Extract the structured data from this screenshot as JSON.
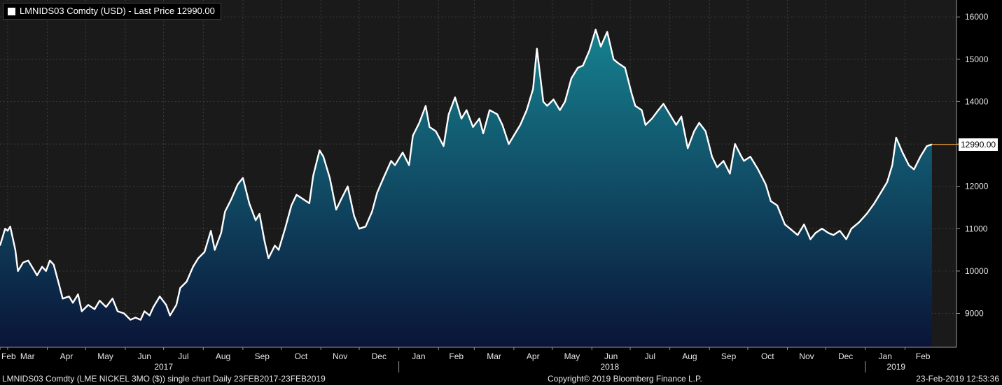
{
  "legend": {
    "label": "LMNIDS03 Comdty (USD) - Last Price 12990.00"
  },
  "footer": {
    "left": "LMNIDS03 Comdty (LME NICKEL    3MO ($)) single chart  Daily 23FEB2017-23FEB2019",
    "center": "Copyright© 2019 Bloomberg Finance L.P.",
    "right": "23-Feb-2019 12:53:36"
  },
  "last_price_label": "12990.00",
  "colors": {
    "background": "#000000",
    "plot_background": "#1a1a1a",
    "line": "#ffffff",
    "area_top": "#16818f",
    "area_bottom": "#0a1438",
    "last_price_marker": "#f0a030"
  },
  "chart_data": {
    "type": "area",
    "title": "",
    "xlabel": "",
    "ylabel": "",
    "x_range": [
      "2017-02-23",
      "2019-02-23"
    ],
    "ylim": [
      8200,
      16400
    ],
    "y_ticks": [
      9000,
      10000,
      11000,
      12000,
      13000,
      14000,
      15000,
      16000
    ],
    "y_tick_labels": [
      "9000",
      "10000",
      "11000",
      "12000",
      "13000",
      "14000",
      "15000",
      "16000"
    ],
    "y_axis_side": "right",
    "grid": true,
    "month_ticks": [
      {
        "label": "Feb",
        "date": "2017-02-01"
      },
      {
        "label": "Mar",
        "date": "2017-03-01"
      },
      {
        "label": "Apr",
        "date": "2017-04-01"
      },
      {
        "label": "May",
        "date": "2017-05-01"
      },
      {
        "label": "Jun",
        "date": "2017-06-01"
      },
      {
        "label": "Jul",
        "date": "2017-07-01"
      },
      {
        "label": "Aug",
        "date": "2017-08-01"
      },
      {
        "label": "Sep",
        "date": "2017-09-01"
      },
      {
        "label": "Oct",
        "date": "2017-10-01"
      },
      {
        "label": "Nov",
        "date": "2017-11-01"
      },
      {
        "label": "Dec",
        "date": "2017-12-01"
      },
      {
        "label": "Jan",
        "date": "2018-01-01"
      },
      {
        "label": "Feb",
        "date": "2018-02-01"
      },
      {
        "label": "Mar",
        "date": "2018-03-01"
      },
      {
        "label": "Apr",
        "date": "2018-04-01"
      },
      {
        "label": "May",
        "date": "2018-05-01"
      },
      {
        "label": "Jun",
        "date": "2018-06-01"
      },
      {
        "label": "Jul",
        "date": "2018-07-01"
      },
      {
        "label": "Aug",
        "date": "2018-08-01"
      },
      {
        "label": "Sep",
        "date": "2018-09-01"
      },
      {
        "label": "Oct",
        "date": "2018-10-01"
      },
      {
        "label": "Nov",
        "date": "2018-11-01"
      },
      {
        "label": "Dec",
        "date": "2018-12-01"
      },
      {
        "label": "Jan",
        "date": "2019-01-01"
      },
      {
        "label": "Feb",
        "date": "2019-02-01"
      }
    ],
    "year_labels": [
      {
        "label": "2017",
        "date": "2017-07-01"
      },
      {
        "label": "2018",
        "date": "2018-06-15"
      },
      {
        "label": "2019",
        "date": "2019-01-25"
      }
    ],
    "year_dividers": [
      "2018-01-01",
      "2019-01-01"
    ],
    "series": [
      {
        "name": "LMNIDS03 Comdty (USD) - Last Price",
        "last_value": 12990,
        "points": [
          [
            "2017-02-23",
            10600
          ],
          [
            "2017-02-27",
            11000
          ],
          [
            "2017-03-01",
            10950
          ],
          [
            "2017-03-03",
            11050
          ],
          [
            "2017-03-07",
            10500
          ],
          [
            "2017-03-09",
            10000
          ],
          [
            "2017-03-13",
            10200
          ],
          [
            "2017-03-17",
            10250
          ],
          [
            "2017-03-21",
            10050
          ],
          [
            "2017-03-24",
            9900
          ],
          [
            "2017-03-28",
            10100
          ],
          [
            "2017-03-31",
            10000
          ],
          [
            "2017-04-03",
            10250
          ],
          [
            "2017-04-06",
            10150
          ],
          [
            "2017-04-10",
            9700
          ],
          [
            "2017-04-13",
            9350
          ],
          [
            "2017-04-18",
            9400
          ],
          [
            "2017-04-21",
            9250
          ],
          [
            "2017-04-25",
            9450
          ],
          [
            "2017-04-28",
            9050
          ],
          [
            "2017-05-03",
            9200
          ],
          [
            "2017-05-08",
            9100
          ],
          [
            "2017-05-12",
            9300
          ],
          [
            "2017-05-17",
            9150
          ],
          [
            "2017-05-22",
            9350
          ],
          [
            "2017-05-26",
            9050
          ],
          [
            "2017-05-31",
            9000
          ],
          [
            "2017-06-05",
            8850
          ],
          [
            "2017-06-09",
            8900
          ],
          [
            "2017-06-13",
            8850
          ],
          [
            "2017-06-16",
            9050
          ],
          [
            "2017-06-20",
            8950
          ],
          [
            "2017-06-23",
            9150
          ],
          [
            "2017-06-28",
            9400
          ],
          [
            "2017-07-03",
            9200
          ],
          [
            "2017-07-06",
            8950
          ],
          [
            "2017-07-11",
            9200
          ],
          [
            "2017-07-14",
            9600
          ],
          [
            "2017-07-19",
            9750
          ],
          [
            "2017-07-24",
            10100
          ],
          [
            "2017-07-28",
            10300
          ],
          [
            "2017-08-02",
            10450
          ],
          [
            "2017-08-07",
            10950
          ],
          [
            "2017-08-10",
            10500
          ],
          [
            "2017-08-15",
            10900
          ],
          [
            "2017-08-18",
            11400
          ],
          [
            "2017-08-23",
            11700
          ],
          [
            "2017-08-28",
            12050
          ],
          [
            "2017-09-01",
            12200
          ],
          [
            "2017-09-06",
            11600
          ],
          [
            "2017-09-11",
            11200
          ],
          [
            "2017-09-14",
            11350
          ],
          [
            "2017-09-18",
            10700
          ],
          [
            "2017-09-21",
            10300
          ],
          [
            "2017-09-26",
            10600
          ],
          [
            "2017-09-29",
            10500
          ],
          [
            "2017-10-04",
            11000
          ],
          [
            "2017-10-09",
            11550
          ],
          [
            "2017-10-13",
            11800
          ],
          [
            "2017-10-18",
            11700
          ],
          [
            "2017-10-23",
            11600
          ],
          [
            "2017-10-26",
            12250
          ],
          [
            "2017-10-31",
            12850
          ],
          [
            "2017-11-03",
            12700
          ],
          [
            "2017-11-08",
            12200
          ],
          [
            "2017-11-13",
            11450
          ],
          [
            "2017-11-17",
            11700
          ],
          [
            "2017-11-22",
            12000
          ],
          [
            "2017-11-27",
            11300
          ],
          [
            "2017-12-01",
            11000
          ],
          [
            "2017-12-06",
            11050
          ],
          [
            "2017-12-11",
            11400
          ],
          [
            "2017-12-15",
            11850
          ],
          [
            "2017-12-20",
            12200
          ],
          [
            "2017-12-26",
            12600
          ],
          [
            "2017-12-29",
            12500
          ],
          [
            "2018-01-04",
            12800
          ],
          [
            "2018-01-09",
            12500
          ],
          [
            "2018-01-12",
            13200
          ],
          [
            "2018-01-17",
            13500
          ],
          [
            "2018-01-22",
            13900
          ],
          [
            "2018-01-25",
            13400
          ],
          [
            "2018-01-30",
            13300
          ],
          [
            "2018-02-05",
            12950
          ],
          [
            "2018-02-09",
            13700
          ],
          [
            "2018-02-14",
            14100
          ],
          [
            "2018-02-19",
            13600
          ],
          [
            "2018-02-23",
            13800
          ],
          [
            "2018-02-28",
            13400
          ],
          [
            "2018-03-05",
            13600
          ],
          [
            "2018-03-08",
            13250
          ],
          [
            "2018-03-13",
            13800
          ],
          [
            "2018-03-19",
            13700
          ],
          [
            "2018-03-23",
            13450
          ],
          [
            "2018-03-28",
            13000
          ],
          [
            "2018-04-03",
            13300
          ],
          [
            "2018-04-06",
            13450
          ],
          [
            "2018-04-11",
            13800
          ],
          [
            "2018-04-16",
            14300
          ],
          [
            "2018-04-19",
            15250
          ],
          [
            "2018-04-24",
            14000
          ],
          [
            "2018-04-27",
            13900
          ],
          [
            "2018-05-02",
            14050
          ],
          [
            "2018-05-07",
            13800
          ],
          [
            "2018-05-11",
            14000
          ],
          [
            "2018-05-16",
            14550
          ],
          [
            "2018-05-21",
            14800
          ],
          [
            "2018-05-25",
            14850
          ],
          [
            "2018-05-30",
            15200
          ],
          [
            "2018-06-04",
            15700
          ],
          [
            "2018-06-08",
            15300
          ],
          [
            "2018-06-13",
            15650
          ],
          [
            "2018-06-18",
            15000
          ],
          [
            "2018-06-22",
            14900
          ],
          [
            "2018-06-27",
            14800
          ],
          [
            "2018-07-02",
            14200
          ],
          [
            "2018-07-05",
            13900
          ],
          [
            "2018-07-10",
            13800
          ],
          [
            "2018-07-13",
            13450
          ],
          [
            "2018-07-18",
            13600
          ],
          [
            "2018-07-23",
            13800
          ],
          [
            "2018-07-27",
            13950
          ],
          [
            "2018-08-01",
            13700
          ],
          [
            "2018-08-06",
            13450
          ],
          [
            "2018-08-10",
            13650
          ],
          [
            "2018-08-15",
            12900
          ],
          [
            "2018-08-20",
            13300
          ],
          [
            "2018-08-24",
            13500
          ],
          [
            "2018-08-29",
            13300
          ],
          [
            "2018-09-03",
            12700
          ],
          [
            "2018-09-07",
            12450
          ],
          [
            "2018-09-12",
            12600
          ],
          [
            "2018-09-17",
            12300
          ],
          [
            "2018-09-21",
            13000
          ],
          [
            "2018-09-26",
            12700
          ],
          [
            "2018-09-28",
            12600
          ],
          [
            "2018-10-03",
            12700
          ],
          [
            "2018-10-09",
            12400
          ],
          [
            "2018-10-15",
            12050
          ],
          [
            "2018-10-19",
            11650
          ],
          [
            "2018-10-24",
            11550
          ],
          [
            "2018-10-30",
            11100
          ],
          [
            "2018-11-05",
            10950
          ],
          [
            "2018-11-09",
            10850
          ],
          [
            "2018-11-14",
            11100
          ],
          [
            "2018-11-19",
            10750
          ],
          [
            "2018-11-23",
            10900
          ],
          [
            "2018-11-28",
            11000
          ],
          [
            "2018-12-03",
            10900
          ],
          [
            "2018-12-07",
            10850
          ],
          [
            "2018-12-12",
            10950
          ],
          [
            "2018-12-17",
            10750
          ],
          [
            "2018-12-21",
            11000
          ],
          [
            "2018-12-27",
            11150
          ],
          [
            "2019-01-02",
            11350
          ],
          [
            "2019-01-08",
            11600
          ],
          [
            "2019-01-14",
            11900
          ],
          [
            "2019-01-18",
            12100
          ],
          [
            "2019-01-22",
            12500
          ],
          [
            "2019-01-25",
            13150
          ],
          [
            "2019-01-30",
            12800
          ],
          [
            "2019-02-04",
            12500
          ],
          [
            "2019-02-08",
            12400
          ],
          [
            "2019-02-13",
            12700
          ],
          [
            "2019-02-18",
            12950
          ],
          [
            "2019-02-22",
            12990
          ]
        ]
      }
    ]
  }
}
